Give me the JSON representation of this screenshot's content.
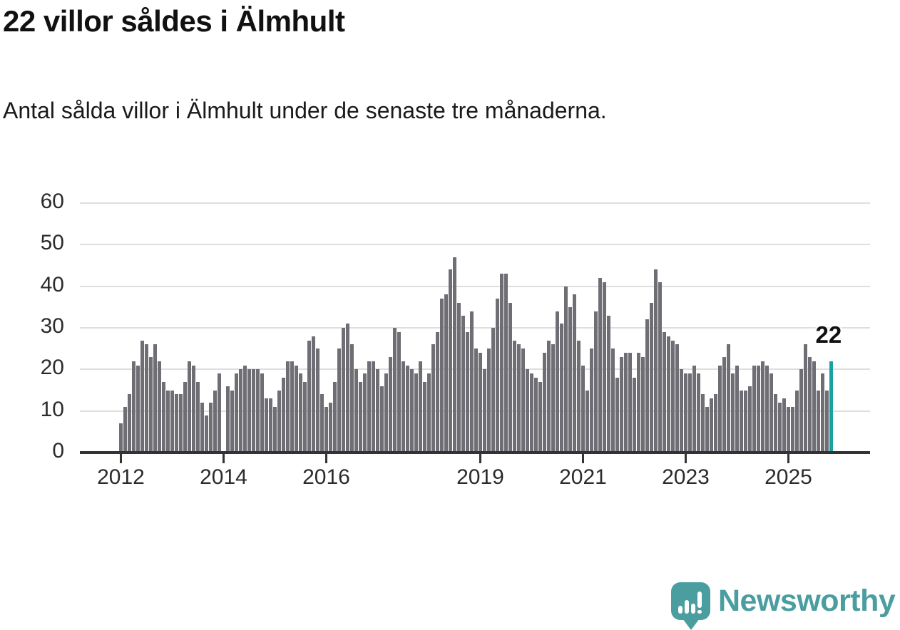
{
  "header": {
    "title": "22 villor såldes i Älmhult",
    "subtitle": "Antal sålda villor i Älmhult under de senaste tre månaderna."
  },
  "chart_data": {
    "type": "bar",
    "title": "22 villor såldes i Älmhult",
    "subtitle": "Antal sålda villor i Älmhult under de senaste tre månaderna.",
    "unit": "antal sålda villor (rullande tre månader)",
    "x_start_month": "2012-01",
    "x_end_month": "2025-11",
    "note": "one month missing (gap) at 2014-01; values are monthly bars",
    "categories_are_months": true,
    "x_tick_labels": [
      "2012",
      "2014",
      "2016",
      "2019",
      "2021",
      "2023",
      "2025"
    ],
    "x_tick_month_indices": [
      0,
      24,
      48,
      84,
      108,
      132,
      156
    ],
    "y_ticks": [
      0,
      10,
      20,
      30,
      40,
      50,
      60
    ],
    "ylim": [
      0,
      60
    ],
    "grid": true,
    "legend": "none",
    "values": [
      7,
      11,
      14,
      22,
      21,
      27,
      26,
      23,
      26,
      22,
      17,
      15,
      15,
      14,
      14,
      17,
      22,
      21,
      17,
      12,
      9,
      12,
      15,
      19,
      null,
      16,
      15,
      19,
      20,
      21,
      20,
      20,
      20,
      19,
      13,
      13,
      11,
      15,
      18,
      22,
      22,
      21,
      19,
      17,
      27,
      28,
      25,
      14,
      11,
      12,
      17,
      25,
      30,
      31,
      26,
      20,
      17,
      19,
      22,
      22,
      20,
      16,
      19,
      23,
      30,
      29,
      22,
      21,
      20,
      19,
      22,
      17,
      19,
      26,
      29,
      37,
      38,
      44,
      47,
      36,
      33,
      29,
      34,
      25,
      24,
      20,
      25,
      30,
      37,
      43,
      43,
      36,
      27,
      26,
      25,
      20,
      19,
      18,
      17,
      24,
      27,
      26,
      34,
      31,
      40,
      35,
      38,
      27,
      21,
      15,
      25,
      34,
      42,
      41,
      33,
      25,
      18,
      23,
      24,
      24,
      18,
      24,
      23,
      32,
      36,
      44,
      41,
      29,
      28,
      27,
      26,
      20,
      19,
      19,
      21,
      19,
      14,
      11,
      13,
      14,
      21,
      23,
      26,
      19,
      21,
      15,
      15,
      16,
      21,
      21,
      22,
      21,
      19,
      14,
      12,
      13,
      11,
      11,
      15,
      20,
      26,
      23,
      22,
      15,
      19,
      15,
      22
    ],
    "highlight_last_bar": true,
    "annotation": {
      "text": "22",
      "attached_to": "last-bar"
    },
    "colors": {
      "bar": "#6e6e74",
      "highlight": "#14a3a1",
      "gridline": "#dedede",
      "axis": "#333333",
      "tick_label": "#2b2b2b"
    }
  },
  "logo": {
    "text": "Newsworthy",
    "color": "#4b9ea0",
    "icon": "newsworthy-speech-bubble-chart-icon"
  }
}
